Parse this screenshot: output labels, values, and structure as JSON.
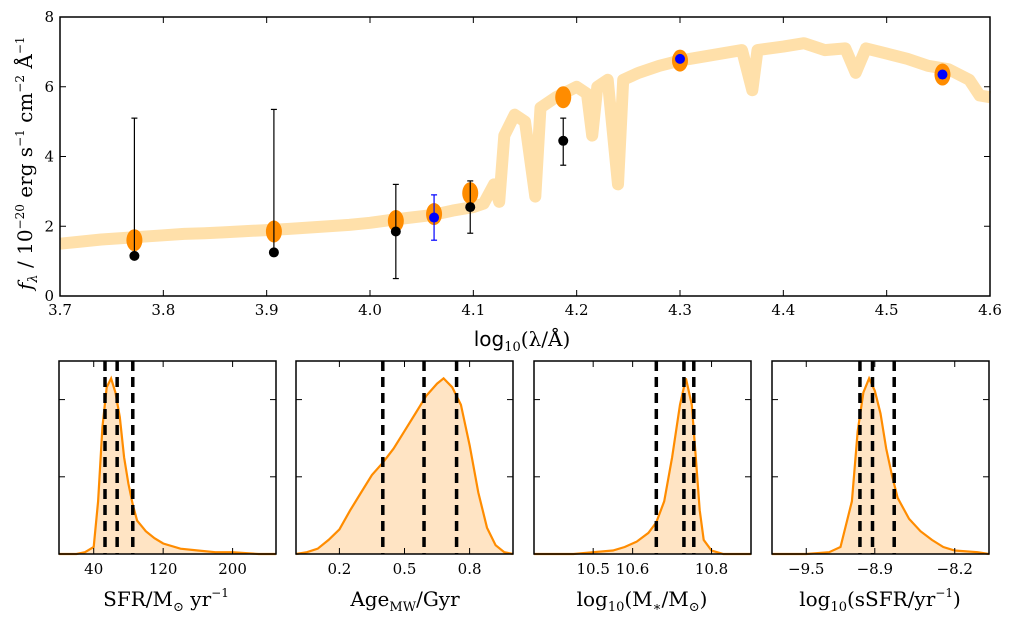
{
  "chart_data": [
    {
      "type": "scatter",
      "id": "sed",
      "xlabel_main": "log",
      "xlabel_sub": "10",
      "xlabel_rest": "(λ/Å)",
      "ylabel": "f_λ / 10^-20 erg s^-1 cm^-2 Å^-1",
      "ylabel_parts": {
        "f": "f",
        "lambda": "λ",
        "mid": " / 10",
        "exp1": "−20",
        "erg": " erg s",
        "exp2": "−1",
        "cm": " cm",
        "exp3": "−2",
        "ang": " Å",
        "exp4": "−1"
      },
      "xlim": [
        3.7,
        4.6
      ],
      "ylim": [
        0,
        8
      ],
      "xticks": [
        3.7,
        3.8,
        3.9,
        4.0,
        4.1,
        4.2,
        4.3,
        4.4,
        4.5,
        4.6
      ],
      "xtick_labels": [
        "3.7",
        "3.8",
        "3.9",
        "4.0",
        "4.1",
        "4.2",
        "4.3",
        "4.4",
        "4.5",
        "4.6"
      ],
      "yticks": [
        0,
        2,
        4,
        6,
        8
      ],
      "ytick_labels": [
        "0",
        "2",
        "4",
        "6",
        "8"
      ],
      "model_spectrum": [
        [
          3.7,
          1.5
        ],
        [
          3.72,
          1.56
        ],
        [
          3.74,
          1.62
        ],
        [
          3.76,
          1.66
        ],
        [
          3.78,
          1.7
        ],
        [
          3.8,
          1.74
        ],
        [
          3.82,
          1.78
        ],
        [
          3.84,
          1.8
        ],
        [
          3.86,
          1.83
        ],
        [
          3.88,
          1.86
        ],
        [
          3.9,
          1.89
        ],
        [
          3.92,
          1.92
        ],
        [
          3.94,
          1.96
        ],
        [
          3.96,
          2.0
        ],
        [
          3.98,
          2.04
        ],
        [
          4.0,
          2.1
        ],
        [
          4.02,
          2.18
        ],
        [
          4.04,
          2.25
        ],
        [
          4.06,
          2.32
        ],
        [
          4.08,
          2.45
        ],
        [
          4.1,
          2.55
        ],
        [
          4.11,
          2.65
        ],
        [
          4.12,
          3.2
        ],
        [
          4.125,
          2.7
        ],
        [
          4.13,
          4.6
        ],
        [
          4.14,
          5.2
        ],
        [
          4.15,
          5.0
        ],
        [
          4.16,
          2.85
        ],
        [
          4.165,
          5.4
        ],
        [
          4.18,
          5.7
        ],
        [
          4.19,
          5.85
        ],
        [
          4.2,
          6.0
        ],
        [
          4.21,
          5.8
        ],
        [
          4.215,
          4.6
        ],
        [
          4.22,
          6.0
        ],
        [
          4.23,
          6.2
        ],
        [
          4.24,
          3.2
        ],
        [
          4.245,
          6.2
        ],
        [
          4.26,
          6.4
        ],
        [
          4.28,
          6.6
        ],
        [
          4.3,
          6.75
        ],
        [
          4.32,
          6.85
        ],
        [
          4.34,
          6.95
        ],
        [
          4.36,
          7.05
        ],
        [
          4.37,
          5.9
        ],
        [
          4.375,
          7.05
        ],
        [
          4.4,
          7.15
        ],
        [
          4.42,
          7.25
        ],
        [
          4.44,
          7.05
        ],
        [
          4.46,
          7.1
        ],
        [
          4.47,
          6.4
        ],
        [
          4.48,
          7.1
        ],
        [
          4.5,
          6.95
        ],
        [
          4.52,
          6.8
        ],
        [
          4.54,
          6.6
        ],
        [
          4.56,
          6.5
        ],
        [
          4.58,
          6.2
        ],
        [
          4.59,
          5.75
        ],
        [
          4.6,
          5.7
        ]
      ],
      "model_fluxes": [
        {
          "x": 3.772,
          "y": 1.6
        },
        {
          "x": 3.907,
          "y": 1.85
        },
        {
          "x": 4.025,
          "y": 2.15
        },
        {
          "x": 4.062,
          "y": 2.35
        },
        {
          "x": 4.097,
          "y": 2.95
        },
        {
          "x": 4.187,
          "y": 5.7
        },
        {
          "x": 4.3,
          "y": 6.75
        },
        {
          "x": 4.554,
          "y": 6.35
        }
      ],
      "photometry": [
        {
          "x": 3.772,
          "y": 1.15,
          "err_lo": 1.15,
          "err_hi": 5.1,
          "color": "#000000"
        },
        {
          "x": 3.907,
          "y": 1.25,
          "err_lo": 1.25,
          "err_hi": 5.35,
          "color": "#000000"
        },
        {
          "x": 4.025,
          "y": 1.85,
          "err_lo": 0.5,
          "err_hi": 3.2,
          "color": "#000000"
        },
        {
          "x": 4.062,
          "y": 2.25,
          "err_lo": 1.6,
          "err_hi": 2.9,
          "color": "#0000ff"
        },
        {
          "x": 4.097,
          "y": 2.55,
          "err_lo": 1.8,
          "err_hi": 3.3,
          "color": "#000000"
        },
        {
          "x": 4.187,
          "y": 4.45,
          "err_lo": 3.75,
          "err_hi": 5.1,
          "color": "#000000"
        },
        {
          "x": 4.3,
          "y": 6.8,
          "err_lo": 6.8,
          "err_hi": 6.8,
          "color": "#0000ff"
        },
        {
          "x": 4.554,
          "y": 6.35,
          "err_lo": 6.35,
          "err_hi": 6.35,
          "color": "#0000ff"
        }
      ],
      "colors": {
        "model": "#ffe0aa",
        "model_points": "#ff8c00"
      }
    },
    {
      "type": "area",
      "id": "sfr",
      "xlabel": "SFR/M☉ yr^-1",
      "xlabel_parts": {
        "base": "SFR/M",
        "sub": "⊙",
        "unit": " yr",
        "exp": "−1"
      },
      "xlim": [
        0,
        250
      ],
      "xticks": [
        40,
        120,
        200
      ],
      "xtick_labels": [
        "40",
        "120",
        "200"
      ],
      "percentiles": [
        53,
        67,
        85
      ],
      "curve": [
        [
          0,
          0.0
        ],
        [
          20,
          0.0
        ],
        [
          30,
          0.01
        ],
        [
          40,
          0.04
        ],
        [
          45,
          0.3
        ],
        [
          50,
          0.72
        ],
        [
          55,
          0.95
        ],
        [
          60,
          1.0
        ],
        [
          65,
          0.92
        ],
        [
          70,
          0.78
        ],
        [
          75,
          0.55
        ],
        [
          80,
          0.4
        ],
        [
          85,
          0.28
        ],
        [
          90,
          0.19
        ],
        [
          95,
          0.16
        ],
        [
          100,
          0.13
        ],
        [
          110,
          0.09
        ],
        [
          120,
          0.06
        ],
        [
          140,
          0.03
        ],
        [
          160,
          0.02
        ],
        [
          180,
          0.01
        ],
        [
          200,
          0.01
        ],
        [
          230,
          0.0
        ],
        [
          250,
          0.0
        ]
      ]
    },
    {
      "type": "area",
      "id": "age",
      "xlabel": "Age_MW/Gyr",
      "xlabel_parts": {
        "base": "Age",
        "sub": "MW",
        "unit": "/Gyr"
      },
      "xlim": [
        0.0,
        1.0
      ],
      "xticks": [
        0.2,
        0.5,
        0.8
      ],
      "xtick_labels": [
        "0.2",
        "0.5",
        "0.8"
      ],
      "percentiles": [
        0.4,
        0.59,
        0.74
      ],
      "curve": [
        [
          0.0,
          0.0
        ],
        [
          0.05,
          0.01
        ],
        [
          0.1,
          0.03
        ],
        [
          0.15,
          0.08
        ],
        [
          0.2,
          0.14
        ],
        [
          0.25,
          0.25
        ],
        [
          0.3,
          0.35
        ],
        [
          0.35,
          0.45
        ],
        [
          0.4,
          0.52
        ],
        [
          0.45,
          0.6
        ],
        [
          0.5,
          0.7
        ],
        [
          0.55,
          0.8
        ],
        [
          0.6,
          0.9
        ],
        [
          0.65,
          0.97
        ],
        [
          0.68,
          1.0
        ],
        [
          0.72,
          0.95
        ],
        [
          0.76,
          0.85
        ],
        [
          0.8,
          0.62
        ],
        [
          0.84,
          0.35
        ],
        [
          0.88,
          0.15
        ],
        [
          0.92,
          0.05
        ],
        [
          0.96,
          0.01
        ],
        [
          1.0,
          0.0
        ]
      ]
    },
    {
      "type": "area",
      "id": "mass",
      "xlabel": "log10(M*/M☉)",
      "xlabel_parts": {
        "base": "log",
        "sub": "10",
        "open": "(M",
        "sub2": "∗",
        "mid": "/M",
        "sub3": "⊙",
        "close": ")"
      },
      "xlim": [
        10.35,
        10.9
      ],
      "xticks": [
        10.5,
        10.6,
        10.8
      ],
      "xtick_labels": [
        "10.5",
        "10.6",
        "10.8"
      ],
      "percentiles": [
        10.66,
        10.73,
        10.755
      ],
      "curve": [
        [
          10.35,
          0.0
        ],
        [
          10.45,
          0.0
        ],
        [
          10.5,
          0.01
        ],
        [
          10.55,
          0.02
        ],
        [
          10.58,
          0.04
        ],
        [
          10.61,
          0.07
        ],
        [
          10.64,
          0.12
        ],
        [
          10.66,
          0.18
        ],
        [
          10.68,
          0.3
        ],
        [
          10.7,
          0.55
        ],
        [
          10.72,
          0.85
        ],
        [
          10.735,
          1.0
        ],
        [
          10.75,
          0.85
        ],
        [
          10.76,
          0.55
        ],
        [
          10.77,
          0.25
        ],
        [
          10.78,
          0.08
        ],
        [
          10.8,
          0.02
        ],
        [
          10.83,
          0.0
        ],
        [
          10.9,
          0.0
        ]
      ]
    },
    {
      "type": "area",
      "id": "ssfr",
      "xlabel": "log10(sSFR/yr^-1)",
      "xlabel_parts": {
        "base": "log",
        "sub": "10",
        "open": "(sSFR/yr",
        "exp": "−1",
        "close": ")"
      },
      "xlim": [
        -9.8,
        -7.9
      ],
      "xticks": [
        -9.5,
        -8.9,
        -8.2
      ],
      "xtick_labels": [
        "−9.5",
        "−8.9",
        "−8.2"
      ],
      "percentiles": [
        -9.03,
        -8.92,
        -8.73
      ],
      "curve": [
        [
          -9.8,
          0.0
        ],
        [
          -9.5,
          0.0
        ],
        [
          -9.3,
          0.01
        ],
        [
          -9.2,
          0.04
        ],
        [
          -9.1,
          0.3
        ],
        [
          -9.05,
          0.7
        ],
        [
          -9.0,
          0.92
        ],
        [
          -8.95,
          1.0
        ],
        [
          -8.9,
          0.93
        ],
        [
          -8.85,
          0.8
        ],
        [
          -8.8,
          0.6
        ],
        [
          -8.75,
          0.45
        ],
        [
          -8.7,
          0.32
        ],
        [
          -8.6,
          0.2
        ],
        [
          -8.5,
          0.13
        ],
        [
          -8.4,
          0.08
        ],
        [
          -8.3,
          0.04
        ],
        [
          -8.2,
          0.02
        ],
        [
          -8.0,
          0.01
        ],
        [
          -7.9,
          0.0
        ]
      ]
    }
  ]
}
